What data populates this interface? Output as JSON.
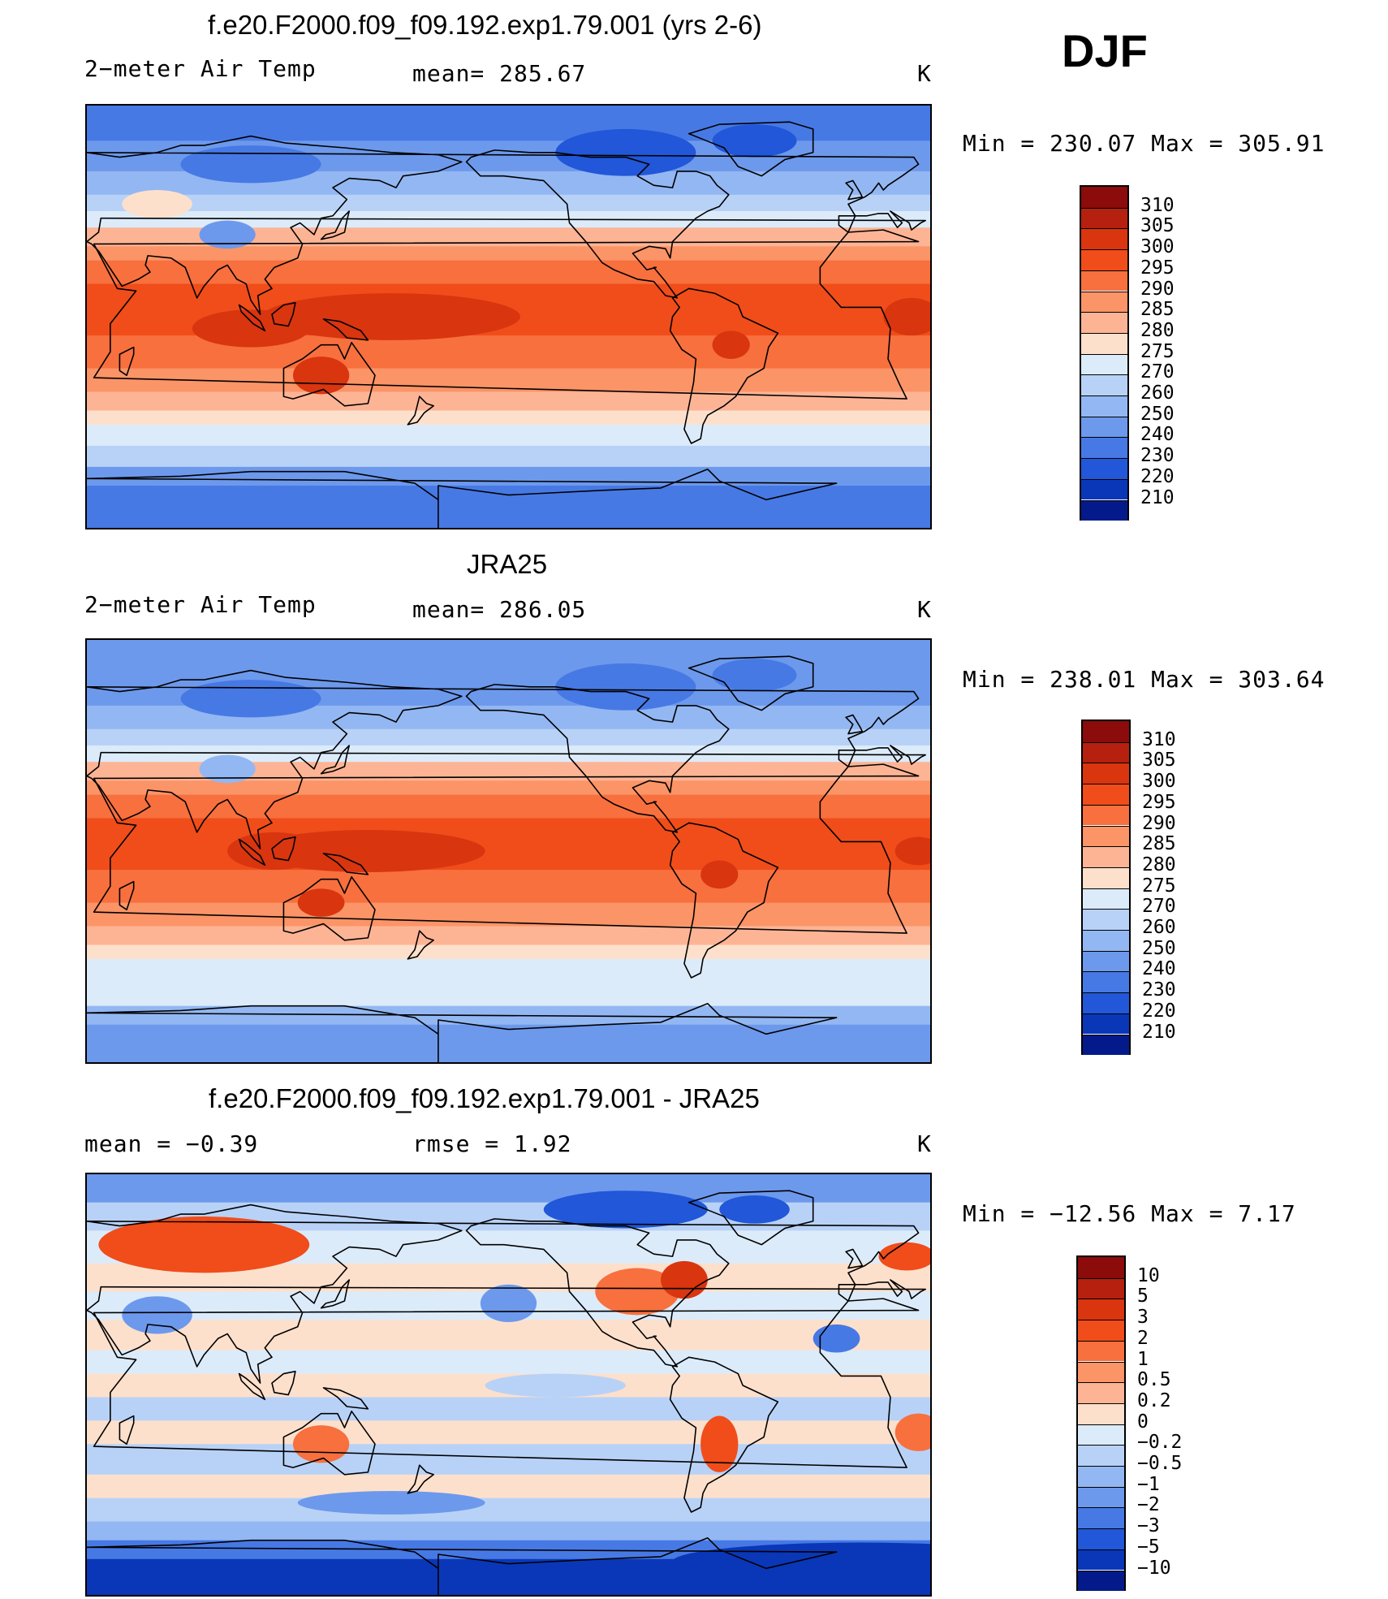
{
  "season": "DJF",
  "units": "K",
  "panels": [
    {
      "title": "f.e20.F2000.f09_f09.192.exp1.79.001 (yrs 2-6)",
      "left_label": "2−meter Air Temp",
      "center_label": "mean=  285.67",
      "right_label": "K",
      "minmax": "Min  =  230.07  Max  =  305.91",
      "map_name": "model-temperature-map"
    },
    {
      "title": "JRA25",
      "left_label": "2−meter Air Temp",
      "center_label": "mean=  286.05",
      "right_label": "K",
      "minmax": "Min  =  238.01  Max  =  303.64",
      "map_name": "jra25-temperature-map"
    },
    {
      "title": "f.e20.F2000.f09_f09.192.exp1.79.001 - JRA25",
      "left_label": "mean  =    −0.39",
      "center_label": "rmse  =     1.92",
      "right_label": "K",
      "minmax": "Min  =  −12.56  Max  =      7.17",
      "map_name": "difference-map"
    }
  ],
  "chart_data": [
    {
      "type": "heatmap",
      "title": "f.e20.F2000.f09_f09.192.exp1.79.001 (yrs 2-6)",
      "variable": "2-meter Air Temp",
      "units": "K",
      "mean": 285.67,
      "min": 230.07,
      "max": 305.91,
      "contour_levels": [
        "310",
        "305",
        "300",
        "295",
        "290",
        "285",
        "280",
        "275",
        "270",
        "260",
        "250",
        "240",
        "230",
        "220",
        "210"
      ],
      "colors": [
        "#8c0b0b",
        "#b5200f",
        "#d9350f",
        "#f04d1a",
        "#f7703e",
        "#fb9467",
        "#fdb495",
        "#fde0cc",
        "#dcebfa",
        "#b8d2f7",
        "#93b7f2",
        "#6d99ec",
        "#4779e5",
        "#2157d8",
        "#0a37b7",
        "#051a8a"
      ]
    },
    {
      "type": "heatmap",
      "title": "JRA25",
      "variable": "2-meter Air Temp",
      "units": "K",
      "mean": 286.05,
      "min": 238.01,
      "max": 303.64,
      "contour_levels": [
        "310",
        "305",
        "300",
        "295",
        "290",
        "285",
        "280",
        "275",
        "270",
        "260",
        "250",
        "240",
        "230",
        "220",
        "210"
      ],
      "colors": [
        "#8c0b0b",
        "#b5200f",
        "#d9350f",
        "#f04d1a",
        "#f7703e",
        "#fb9467",
        "#fdb495",
        "#fde0cc",
        "#dcebfa",
        "#b8d2f7",
        "#93b7f2",
        "#6d99ec",
        "#4779e5",
        "#2157d8",
        "#0a37b7",
        "#051a8a"
      ]
    },
    {
      "type": "heatmap",
      "title": "f.e20.F2000.f09_f09.192.exp1.79.001 - JRA25",
      "units": "K",
      "mean": -0.39,
      "rmse": 1.92,
      "min": -12.56,
      "max": 7.17,
      "contour_levels": [
        "10",
        "5",
        "3",
        "2",
        "1",
        "0.5",
        "0.2",
        "0",
        "−0.2",
        "−0.5",
        "−1",
        "−2",
        "−3",
        "−5",
        "−10"
      ],
      "colors": [
        "#8c0b0b",
        "#b5200f",
        "#d9350f",
        "#f04d1a",
        "#f7703e",
        "#fb9467",
        "#fdb495",
        "#fde0cc",
        "#dcebfa",
        "#b8d2f7",
        "#93b7f2",
        "#6d99ec",
        "#4779e5",
        "#2157d8",
        "#0a37b7",
        "#051a8a"
      ]
    }
  ]
}
